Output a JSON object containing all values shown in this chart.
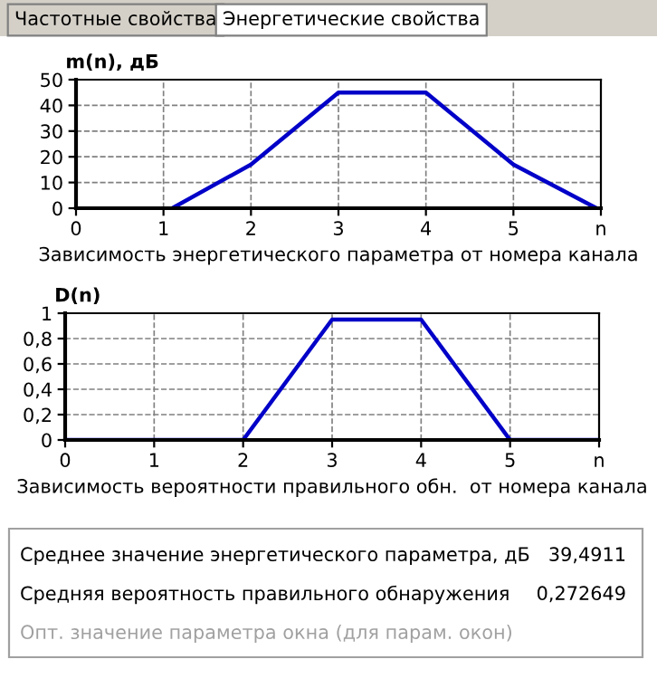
{
  "chart_data": [
    {
      "type": "other",
      "annotations": [
        "Частотные свойства",
        "Энергетические свойства"
      ]
    },
    {
      "type": "line",
      "ylabel": "m(n), дБ",
      "xlabel": "Зависимость энергетического параметра от номера канала",
      "x": [
        1.1,
        2,
        3,
        4,
        5,
        5.95
      ],
      "series": [
        {
          "color": "#0000c8",
          "values": [
            0,
            17,
            45,
            45,
            17,
            0
          ]
        }
      ],
      "xlim": [
        0,
        6
      ],
      "xticks": [
        0,
        1,
        2,
        3,
        4,
        5,
        {
          "value": 6,
          "label": "n"
        }
      ],
      "ylim": [
        0,
        50
      ],
      "yticks": [
        0,
        10,
        20,
        30,
        40,
        50
      ],
      "grid": true,
      "line_style": "solid",
      "marker": "none"
    },
    {
      "type": "line",
      "ylabel": "D(n)",
      "xlabel": "Зависимость вероятности правильного обн.  от номера канала",
      "x": [
        0,
        2,
        3,
        4,
        5,
        6
      ],
      "series": [
        {
          "color": "#0000c8",
          "values": [
            0,
            0,
            0.95,
            0.95,
            0,
            0
          ]
        }
      ],
      "xlim": [
        0,
        6
      ],
      "xticks": [
        0,
        1,
        2,
        3,
        4,
        5,
        {
          "value": 6,
          "label": "n"
        }
      ],
      "ylim": [
        0,
        1
      ],
      "yticks": [
        0,
        {
          "value": 0.2,
          "label": "0,2"
        },
        {
          "value": 0.4,
          "label": "0,4"
        },
        {
          "value": 0.6,
          "label": "0,6"
        },
        {
          "value": 0.8,
          "label": "0,8"
        },
        1
      ],
      "grid": true,
      "line_style": "solid",
      "marker": "none"
    },
    {
      "type": "other",
      "annotations": [
        "Среднее значение энергетического параметра, дБ",
        "39,4911",
        "Средняя вероятность правильного обнаружения",
        "0,272649",
        "Опт. значение параметра окна (для парам. окон)"
      ]
    }
  ]
}
